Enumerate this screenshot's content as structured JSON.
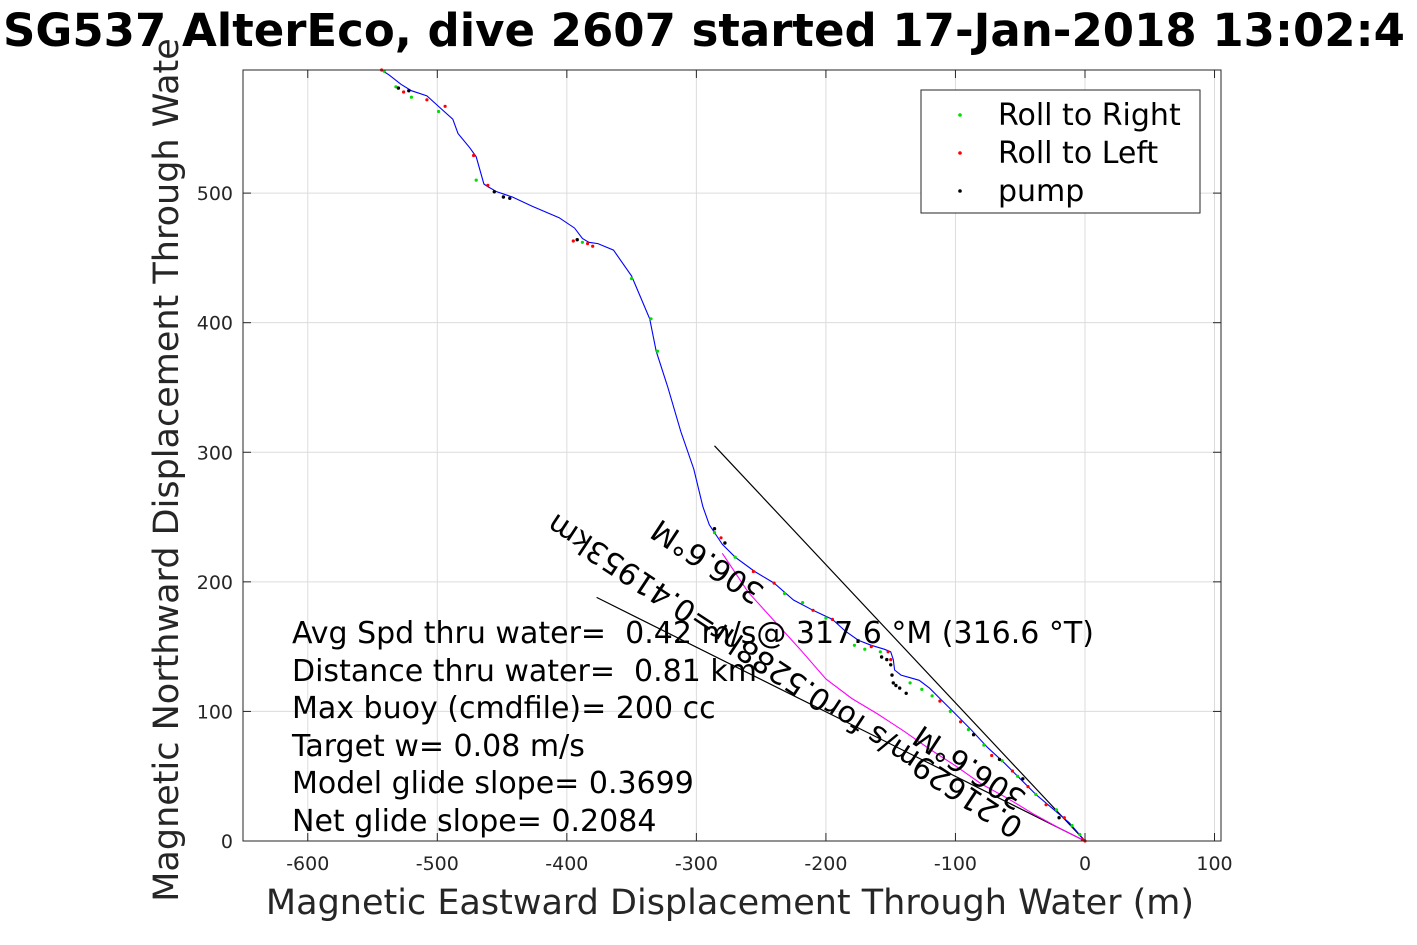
{
  "chart_data": {
    "type": "line",
    "title": "SG537 AlterEco, dive 2607 started 17-Jan-2018 13:02:4",
    "xlabel": "Magnetic Eastward Displacement Through Water (m)",
    "ylabel": "Magnetic Northward Displacement Through Wate",
    "xlim": [
      -650,
      105
    ],
    "ylim": [
      0,
      595
    ],
    "xticks": [
      -600,
      -500,
      -400,
      -300,
      -200,
      -100,
      0,
      100
    ],
    "yticks": [
      0,
      100,
      200,
      300,
      400,
      500
    ],
    "grid": true,
    "legend_position": "top-right",
    "colors": {
      "track": "#0000ff",
      "dive_track": "#ff00ff",
      "roll_right": "#00dd00",
      "roll_left": "#ff0000",
      "pump": "#000000",
      "cone": "#000000",
      "axes": "#262626",
      "grid": "#dcdcdc"
    },
    "legend": [
      {
        "label": "Roll to Right",
        "color": "#00dd00"
      },
      {
        "label": "Roll to Left",
        "color": "#ff0000"
      },
      {
        "label": "pump",
        "color": "#000000"
      }
    ],
    "series": [
      {
        "name": "track",
        "x": [
          0,
          -12,
          -25,
          -38,
          -50,
          -62,
          -75,
          -88,
          -100,
          -112,
          -120,
          -128,
          -135,
          -142,
          -147,
          -148,
          -150,
          -155,
          -165,
          -175,
          -185,
          -195,
          -210,
          -225,
          -240,
          -255,
          -270,
          -280,
          -290,
          -295,
          -302,
          -312,
          -322,
          -331,
          -336,
          -350,
          -364,
          -376,
          -383,
          -388,
          -394,
          -406,
          -427,
          -442,
          -454,
          -461,
          -464,
          -470,
          -475,
          -484,
          -488,
          -498,
          -508,
          -520,
          -528,
          -537,
          -543
        ],
        "y": [
          0,
          14,
          25,
          36,
          48,
          60,
          72,
          86,
          98,
          110,
          118,
          124,
          126,
          128,
          132,
          140,
          146,
          148,
          151,
          155,
          162,
          171,
          178,
          186,
          199,
          208,
          219,
          229,
          244,
          258,
          287,
          316,
          350,
          378,
          403,
          436,
          456,
          461,
          462,
          465,
          473,
          481,
          490,
          497,
          501,
          505,
          507,
          528,
          535,
          546,
          557,
          566,
          575,
          579,
          584,
          591,
          595
        ]
      },
      {
        "name": "dive",
        "x": [
          0,
          -20,
          -40,
          -60,
          -80,
          -100,
          -120,
          -140,
          -160,
          -180,
          -200,
          -220,
          -240,
          -260,
          -280
        ],
        "y": [
          0,
          10,
          21,
          33,
          44,
          58,
          71,
          85,
          98,
          110,
          125,
          148,
          170,
          192,
          222
        ]
      },
      {
        "name": "cone-upper",
        "x": [
          0,
          -286
        ],
        "y": [
          0,
          305
        ]
      },
      {
        "name": "cone-lower",
        "x": [
          0,
          -377
        ],
        "y": [
          0,
          188
        ]
      }
    ],
    "markers": {
      "roll_right": [
        [
          -541,
          594
        ],
        [
          -532,
          582
        ],
        [
          -520,
          574
        ],
        [
          -499,
          563
        ],
        [
          -470,
          510
        ],
        [
          -388,
          462
        ],
        [
          -350,
          434
        ],
        [
          -335,
          403
        ],
        [
          -330,
          378
        ],
        [
          -286,
          238
        ],
        [
          -270,
          219
        ],
        [
          -232,
          191
        ],
        [
          -218,
          184
        ],
        [
          -200,
          172
        ],
        [
          -178,
          151
        ],
        [
          -170,
          148
        ],
        [
          -158,
          146
        ],
        [
          -135,
          122
        ],
        [
          -126,
          117
        ],
        [
          -118,
          112
        ],
        [
          -104,
          100
        ],
        [
          -90,
          86
        ],
        [
          -78,
          74
        ],
        [
          -64,
          62
        ],
        [
          -52,
          50
        ],
        [
          -38,
          36
        ],
        [
          -22,
          24
        ],
        [
          -10,
          12
        ],
        [
          -4,
          5
        ]
      ],
      "roll_left": [
        [
          -543,
          595
        ],
        [
          -526,
          578
        ],
        [
          -508,
          572
        ],
        [
          -494,
          567
        ],
        [
          -472,
          529
        ],
        [
          -461,
          506
        ],
        [
          -395,
          463
        ],
        [
          -384,
          461
        ],
        [
          -380,
          459
        ],
        [
          -281,
          234
        ],
        [
          -256,
          208
        ],
        [
          -240,
          199
        ],
        [
          -210,
          178
        ],
        [
          -195,
          171
        ],
        [
          -165,
          150
        ],
        [
          -152,
          146
        ],
        [
          -150,
          140
        ],
        [
          -112,
          108
        ],
        [
          -96,
          92
        ],
        [
          -72,
          66
        ],
        [
          -56,
          54
        ],
        [
          -44,
          42
        ],
        [
          -30,
          28
        ],
        [
          -16,
          18
        ],
        [
          -2,
          1
        ],
        [
          0,
          0
        ]
      ],
      "pump": [
        [
          -530,
          581
        ],
        [
          -522,
          579
        ],
        [
          -456,
          501
        ],
        [
          -449,
          497
        ],
        [
          -444,
          496
        ],
        [
          -392,
          464
        ],
        [
          -286,
          241
        ],
        [
          -278,
          230
        ],
        [
          -157,
          142
        ],
        [
          -153,
          140
        ],
        [
          -150,
          136
        ],
        [
          -149,
          128
        ],
        [
          -148,
          122
        ],
        [
          -146,
          120
        ],
        [
          -143,
          118
        ],
        [
          -138,
          114
        ],
        [
          -86,
          82
        ],
        [
          -66,
          63
        ],
        [
          -48,
          48
        ],
        [
          -20,
          18
        ]
      ]
    },
    "stats": [
      "Avg Spd thru water=  0.42 m/s@ 317.6 °M (316.6 °T)",
      "Distance thru water=  0.81 km",
      "Max buoy (cmdfile)= 200 cc",
      "Target w= 0.08 m/s",
      "Model glide slope= 0.3699",
      "Net glide slope= 0.2084"
    ],
    "annotations": [
      "0.21629m/s for0.5288hr=0.41953km",
      "306.6°M",
      "306.6°M"
    ]
  }
}
